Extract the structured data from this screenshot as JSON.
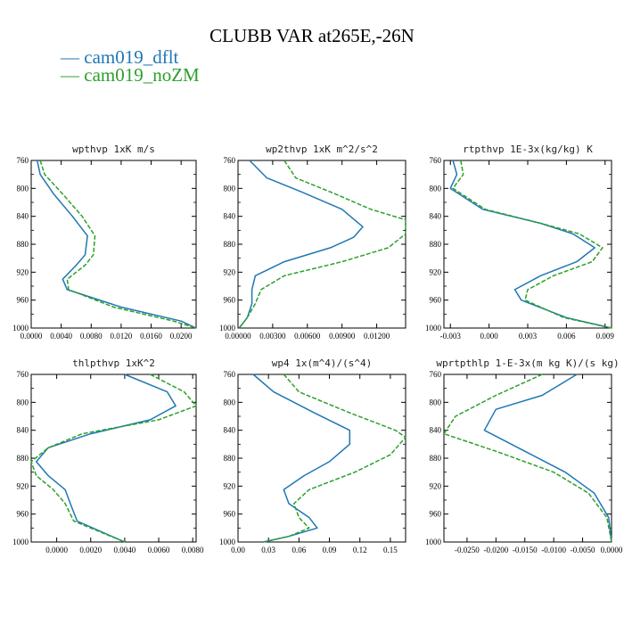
{
  "title": "CLUBB VAR at265E,-26N",
  "legend": [
    {
      "label": "cam019_dflt",
      "color": "#1f77b4",
      "dashed": false
    },
    {
      "label": "cam019_noZM",
      "color": "#2ca02c",
      "dashed": true
    }
  ],
  "chart_data": [
    {
      "type": "line",
      "title": "wpthvp  1xK m/s",
      "ylim": [
        760,
        1000
      ],
      "yticks": [
        760,
        800,
        840,
        880,
        920,
        960,
        1000
      ],
      "ytick_labels": [
        "760",
        "800",
        "840",
        "880",
        "920",
        "960",
        "1000"
      ],
      "xlim": [
        0,
        0.022
      ],
      "xticks": [
        0,
        0.004,
        0.008,
        0.012,
        0.016,
        0.02
      ],
      "xtick_labels": [
        "0.0000",
        "0.0040",
        "0.0080",
        "0.0120",
        "0.0160",
        "0.0200"
      ],
      "series": [
        {
          "name": "cam019_dflt",
          "x": [
            0.0008,
            0.0012,
            0.003,
            0.0055,
            0.0075,
            0.0072,
            0.006,
            0.0042,
            0.0048,
            0.012,
            0.02,
            0.022
          ],
          "y": [
            760,
            780,
            808,
            840,
            868,
            895,
            910,
            930,
            945,
            970,
            990,
            1000
          ]
        },
        {
          "name": "cam019_noZM",
          "x": [
            0.0012,
            0.0018,
            0.0042,
            0.0068,
            0.0085,
            0.0083,
            0.0072,
            0.0048,
            0.005,
            0.011,
            0.019,
            0.022
          ],
          "y": [
            760,
            780,
            808,
            840,
            868,
            895,
            910,
            930,
            945,
            970,
            990,
            1000
          ]
        }
      ]
    },
    {
      "type": "line",
      "title": "wp2thvp  1xK m^2/s^2",
      "ylim": [
        760,
        1000
      ],
      "yticks": [
        760,
        800,
        840,
        880,
        920,
        960,
        1000
      ],
      "ytick_labels": [
        "760",
        "800",
        "840",
        "880",
        "920",
        "960",
        "1000"
      ],
      "xlim": [
        0,
        0.0145
      ],
      "xticks": [
        0,
        0.003,
        0.006,
        0.009,
        0.012
      ],
      "xtick_labels": [
        "0.00000",
        "0.00300",
        "0.00600",
        "0.00900",
        "0.01200"
      ],
      "series": [
        {
          "name": "cam019_dflt",
          "x": [
            0.001,
            0.0025,
            0.0055,
            0.009,
            0.0108,
            0.01,
            0.008,
            0.004,
            0.0015,
            0.0012,
            0.0012,
            0.0008,
            0.0001
          ],
          "y": [
            760,
            785,
            805,
            830,
            855,
            870,
            885,
            905,
            925,
            945,
            965,
            985,
            1000
          ]
        },
        {
          "name": "cam019_noZM",
          "x": [
            0.004,
            0.005,
            0.008,
            0.0115,
            0.0145,
            0.0145,
            0.013,
            0.009,
            0.004,
            0.002,
            0.0015,
            0.0008,
            0.0001
          ],
          "y": [
            760,
            785,
            805,
            830,
            845,
            865,
            885,
            905,
            925,
            945,
            965,
            985,
            1000
          ]
        }
      ]
    },
    {
      "type": "line",
      "title": "rtpthvp  1E-3x(kg/kg) K",
      "ylim": [
        760,
        1000
      ],
      "yticks": [
        760,
        800,
        840,
        880,
        920,
        960,
        1000
      ],
      "ytick_labels": [
        "760",
        "800",
        "840",
        "880",
        "920",
        "960",
        "1000"
      ],
      "xlim": [
        -0.0035,
        0.0095
      ],
      "xticks": [
        -0.003,
        0,
        0.003,
        0.006,
        0.009
      ],
      "xtick_labels": [
        "-0.003",
        "0.000",
        "0.003",
        "0.006",
        "0.009"
      ],
      "series": [
        {
          "name": "cam019_dflt",
          "x": [
            -0.0028,
            -0.0025,
            -0.003,
            -0.0005,
            0.004,
            0.0065,
            0.0082,
            0.0068,
            0.004,
            0.002,
            0.0025,
            0.006,
            0.0095
          ],
          "y": [
            760,
            780,
            800,
            830,
            850,
            865,
            885,
            905,
            925,
            945,
            960,
            985,
            1000
          ]
        },
        {
          "name": "cam019_noZM",
          "x": [
            -0.0022,
            -0.002,
            -0.0028,
            -0.0003,
            0.004,
            0.007,
            0.0088,
            0.008,
            0.005,
            0.003,
            0.0028,
            0.0058,
            0.0095
          ],
          "y": [
            760,
            780,
            800,
            830,
            850,
            865,
            885,
            905,
            925,
            945,
            960,
            985,
            1000
          ]
        }
      ]
    },
    {
      "type": "line",
      "title": "thlpthvp  1xK^2",
      "ylim": [
        760,
        1000
      ],
      "yticks": [
        760,
        800,
        840,
        880,
        920,
        960,
        1000
      ],
      "ytick_labels": [
        "760",
        "800",
        "840",
        "880",
        "920",
        "960",
        "1000"
      ],
      "xlim": [
        -0.0015,
        0.0082
      ],
      "xticks": [
        0,
        0.002,
        0.004,
        0.006,
        0.008
      ],
      "xtick_labels": [
        "0.0000",
        "0.0020",
        "0.0040",
        "0.0060",
        "0.0080"
      ],
      "series": [
        {
          "name": "cam019_dflt",
          "x": [
            0.004,
            0.0065,
            0.007,
            0.0055,
            0.002,
            -0.0005,
            -0.0012,
            -0.0005,
            0.0005,
            0.0008,
            0.0012,
            0.004
          ],
          "y": [
            760,
            785,
            805,
            825,
            845,
            865,
            885,
            905,
            925,
            945,
            970,
            1000
          ]
        },
        {
          "name": "cam019_noZM",
          "x": [
            0.0055,
            0.0075,
            0.0082,
            0.006,
            0.0015,
            -0.0005,
            -0.0015,
            -0.0012,
            -0.0002,
            0.0005,
            0.001,
            0.004
          ],
          "y": [
            760,
            785,
            805,
            825,
            845,
            865,
            885,
            905,
            925,
            945,
            970,
            1000
          ]
        }
      ]
    },
    {
      "type": "line",
      "title": "wp4  1x(m^4)/(s^4)",
      "ylim": [
        760,
        1000
      ],
      "yticks": [
        760,
        800,
        840,
        880,
        920,
        960,
        1000
      ],
      "ytick_labels": [
        "760",
        "800",
        "840",
        "880",
        "920",
        "960",
        "1000"
      ],
      "xlim": [
        0,
        0.165
      ],
      "xticks": [
        0,
        0.03,
        0.06,
        0.09,
        0.12,
        0.15
      ],
      "xtick_labels": [
        "0.00",
        "0.03",
        "0.06",
        "0.09",
        "0.12",
        "0.15"
      ],
      "series": [
        {
          "name": "cam019_dflt",
          "x": [
            0.015,
            0.035,
            0.075,
            0.11,
            0.11,
            0.09,
            0.065,
            0.045,
            0.05,
            0.07,
            0.078,
            0.05,
            0.025
          ],
          "y": [
            760,
            785,
            815,
            840,
            860,
            885,
            905,
            925,
            945,
            965,
            980,
            992,
            1000
          ]
        },
        {
          "name": "cam019_noZM",
          "x": [
            0.045,
            0.06,
            0.11,
            0.155,
            0.165,
            0.15,
            0.115,
            0.07,
            0.055,
            0.06,
            0.07,
            0.05,
            0.025
          ],
          "y": [
            760,
            785,
            815,
            840,
            850,
            875,
            900,
            925,
            945,
            965,
            980,
            992,
            1000
          ]
        }
      ]
    },
    {
      "type": "line",
      "title": "wprtpthlp  1-E-3x(m kg K)/(s kg)",
      "ylim": [
        760,
        1000
      ],
      "yticks": [
        760,
        800,
        840,
        880,
        920,
        960,
        1000
      ],
      "ytick_labels": [
        "760",
        "800",
        "840",
        "880",
        "920",
        "960",
        "1000"
      ],
      "xlim": [
        -0.029,
        0
      ],
      "xticks": [
        -0.025,
        -0.02,
        -0.015,
        -0.01,
        -0.005,
        0
      ],
      "xtick_labels": [
        "-0.0250",
        "-0.0200",
        "-0.0150",
        "-0.0100",
        "-0.0050",
        "0.0000"
      ],
      "series": [
        {
          "name": "cam019_dflt",
          "x": [
            -0.006,
            -0.012,
            -0.02,
            -0.022,
            -0.015,
            -0.008,
            -0.003,
            -0.0005,
            0.0
          ],
          "y": [
            760,
            790,
            810,
            840,
            870,
            900,
            930,
            965,
            1000
          ]
        },
        {
          "name": "cam019_noZM",
          "x": [
            -0.012,
            -0.02,
            -0.027,
            -0.029,
            -0.02,
            -0.01,
            -0.004,
            -0.0008,
            0.0
          ],
          "y": [
            760,
            790,
            820,
            845,
            870,
            900,
            930,
            965,
            1000
          ]
        }
      ]
    }
  ]
}
